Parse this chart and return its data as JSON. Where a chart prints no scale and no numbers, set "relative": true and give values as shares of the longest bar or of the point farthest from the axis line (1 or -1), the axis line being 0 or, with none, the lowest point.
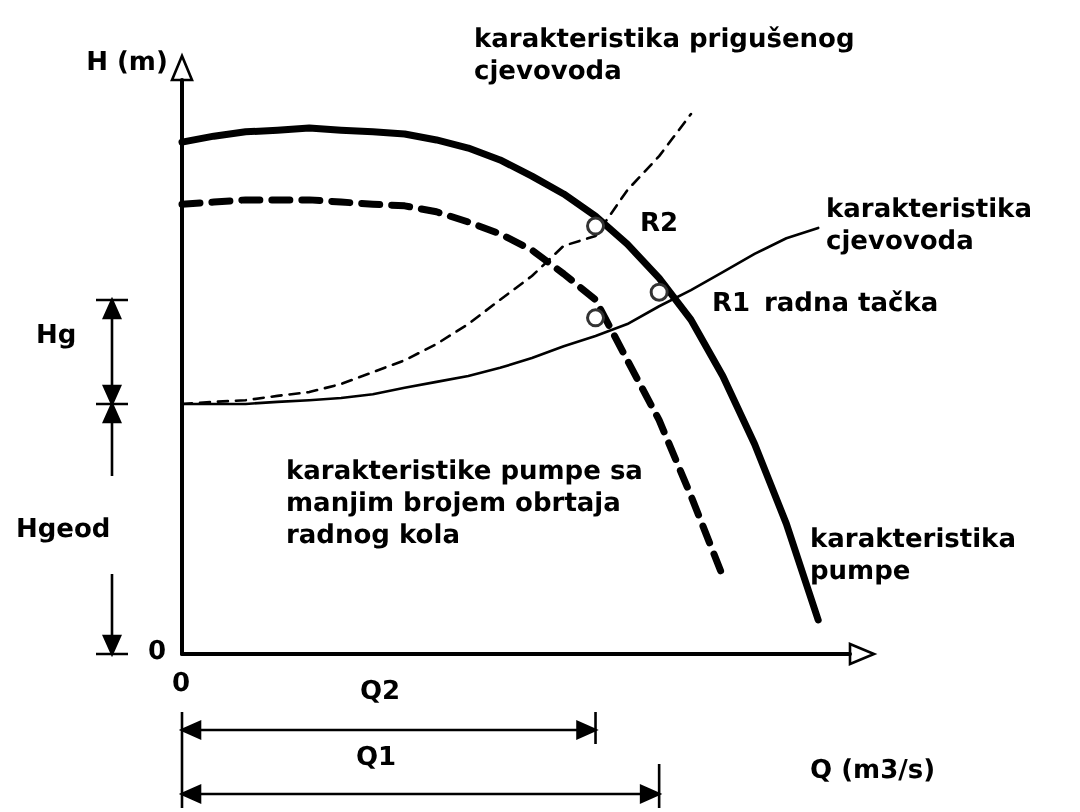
{
  "chart_data": {
    "type": "line",
    "relative": true,
    "ylabel": "H (m)",
    "xlabel": "Q (m3/s)",
    "categories": [
      null,
      null,
      null,
      null,
      null,
      null,
      null,
      null,
      null,
      null,
      null,
      null,
      null,
      null,
      null,
      null,
      null,
      null,
      null,
      null,
      null,
      null
    ],
    "series": [
      {
        "name": "karakteristika pumpe",
        "color": "#000000",
        "line_style": "solid",
        "values": [
          0.948,
          0.959,
          0.967,
          0.97,
          0.974,
          0.97,
          0.967,
          0.963,
          0.952,
          0.937,
          0.915,
          0.885,
          0.852,
          0.811,
          0.759,
          0.696,
          0.619,
          0.515,
          0.389,
          0.241,
          0.063,
          null
        ]
      },
      {
        "name": "karakteristike pumpe sa manjim brojem obrtaja radnog kola",
        "color": "#000000",
        "line_style": "dashed",
        "values": [
          0.833,
          0.837,
          0.841,
          0.841,
          0.841,
          0.837,
          0.833,
          0.83,
          0.819,
          0.8,
          0.778,
          0.748,
          0.704,
          0.656,
          0.544,
          0.433,
          0.293,
          0.144,
          null,
          null,
          null,
          null
        ]
      },
      {
        "name": "karakteristika cjevovoda",
        "color": "#000000",
        "line_style": "solid",
        "values": [
          0.463,
          0.463,
          0.463,
          0.467,
          0.47,
          0.474,
          0.481,
          0.493,
          0.504,
          0.515,
          0.53,
          0.548,
          0.57,
          0.589,
          0.611,
          0.644,
          0.674,
          0.707,
          0.741,
          0.77,
          0.789,
          null
        ]
      },
      {
        "name": "karakteristika prigušenog cjevovoda",
        "color": "#000000",
        "line_style": "dashed",
        "values": [
          0.463,
          0.467,
          0.47,
          0.478,
          0.485,
          0.5,
          0.522,
          0.544,
          0.574,
          0.611,
          0.656,
          0.7,
          0.756,
          0.774,
          0.859,
          0.922,
          1.0,
          null,
          null,
          null,
          null,
          null
        ]
      }
    ],
    "annotations": [
      "R2",
      "R1",
      "radna tačka",
      "Hg",
      "Hgeod",
      "Q2",
      "Q1",
      "0",
      "0"
    ],
    "marker": "none",
    "grid": false,
    "legend": false
  }
}
